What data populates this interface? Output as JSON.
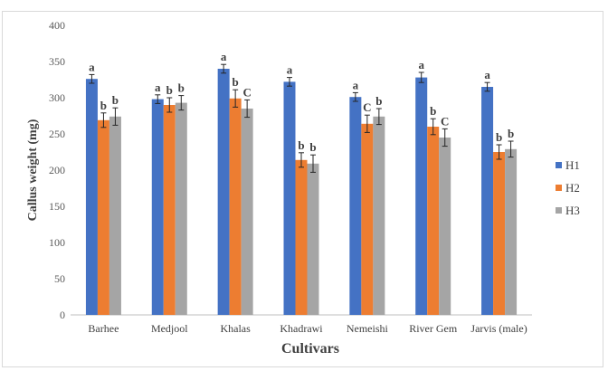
{
  "chart_data": {
    "type": "bar",
    "xlabel": "Cultivars",
    "ylabel": "Callus weight (mg)",
    "ylim": [
      0,
      400
    ],
    "yticks": [
      0,
      50,
      100,
      150,
      200,
      250,
      300,
      350,
      400
    ],
    "grid": false,
    "legend_position": "right",
    "categories": [
      "Barhee",
      "Medjool",
      "Khalas",
      "Khadrawi",
      "Nemeishi",
      "River Gem",
      "Jarvis (male)"
    ],
    "series": [
      {
        "name": "H1",
        "color": "#4472c4",
        "values": [
          326,
          298,
          340,
          322,
          301,
          328,
          315
        ],
        "errors": [
          6,
          6,
          6,
          6,
          6,
          7,
          6
        ],
        "labels": [
          "a",
          "a",
          "a",
          "a",
          "a",
          "a",
          "a"
        ]
      },
      {
        "name": "H2",
        "color": "#ed7d31",
        "values": [
          269,
          290,
          299,
          214,
          264,
          260,
          225
        ],
        "errors": [
          10,
          10,
          12,
          10,
          12,
          11,
          10
        ],
        "labels": [
          "b",
          "b",
          "b",
          "b",
          "C",
          "b",
          "b"
        ]
      },
      {
        "name": "H3",
        "color": "#a5a5a5",
        "values": [
          274,
          293,
          285,
          209,
          274,
          245,
          229
        ],
        "errors": [
          12,
          10,
          12,
          12,
          11,
          12,
          11
        ],
        "labels": [
          "b",
          "b",
          "C",
          "b",
          "b",
          "C",
          "b"
        ]
      }
    ]
  }
}
